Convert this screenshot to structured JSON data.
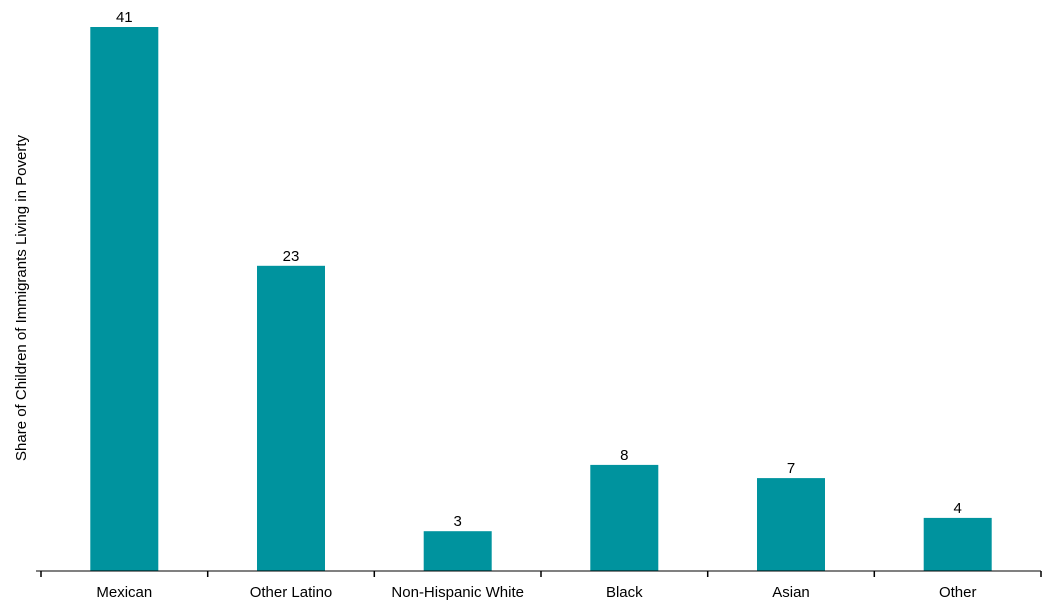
{
  "chart_data": {
    "type": "bar",
    "title": "",
    "xlabel": "",
    "ylabel": "Share of Children of Immigrants Living in Poverty",
    "categories": [
      "Mexican",
      "Other Latino",
      "Non-Hispanic White",
      "Black",
      "Asian",
      "Other"
    ],
    "values": [
      41,
      23,
      3,
      8,
      7,
      4
    ],
    "data_labels": [
      "41",
      "23",
      "3",
      "8",
      "7",
      "4"
    ],
    "ylim": [
      0,
      41
    ],
    "grid": false,
    "legend": "none",
    "bar_color": "#00939e",
    "axis_color": "#000000"
  }
}
